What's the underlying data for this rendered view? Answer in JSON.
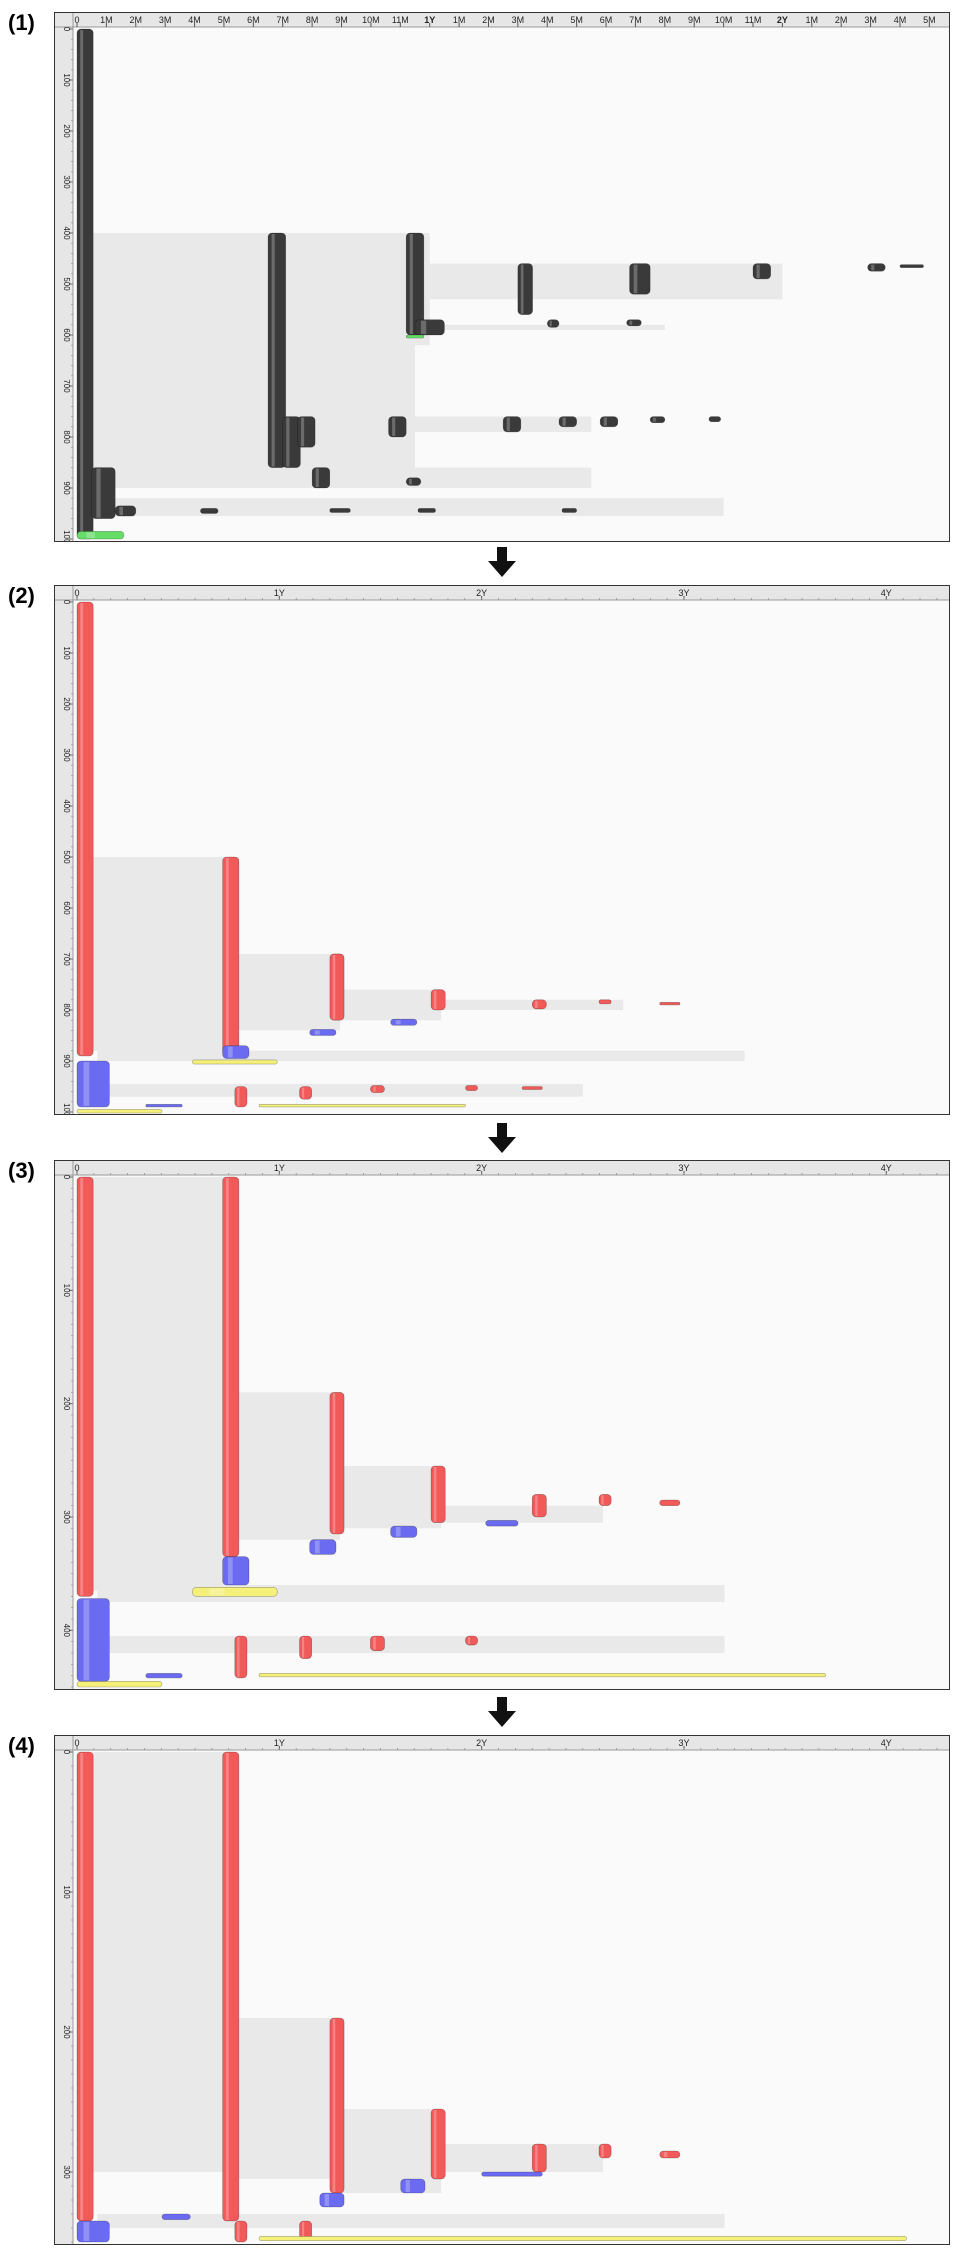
{
  "panels": [
    {
      "label": "(1)"
    },
    {
      "label": "(2)"
    },
    {
      "label": "(3)"
    },
    {
      "label": "(4)"
    }
  ],
  "colors": {
    "frame_bg": "#fafafa",
    "ruler_bg": "#e6e6e6",
    "shade": "#e9e9e9",
    "black_bar": "#3a3a3a",
    "red_bar": "#f25a5a",
    "blue_bar": "#6b6bf2",
    "yellow_bar": "#f5f07a",
    "green_bar": "#66dd66",
    "arrow": "#111111"
  },
  "chart_data": [
    {
      "type": "timeline",
      "panel": "(1)",
      "x_unit": "months",
      "xlim": [
        0,
        29.6
      ],
      "x_ticks": [
        {
          "v": 0,
          "label": "0"
        },
        {
          "v": 1,
          "label": "1M"
        },
        {
          "v": 2,
          "label": "2M"
        },
        {
          "v": 3,
          "label": "3M"
        },
        {
          "v": 4,
          "label": "4M"
        },
        {
          "v": 5,
          "label": "5M"
        },
        {
          "v": 6,
          "label": "6M"
        },
        {
          "v": 7,
          "label": "7M"
        },
        {
          "v": 8,
          "label": "8M"
        },
        {
          "v": 9,
          "label": "9M"
        },
        {
          "v": 10,
          "label": "10M"
        },
        {
          "v": 11,
          "label": "11M"
        },
        {
          "v": 12,
          "label": "1Y",
          "bold": true
        },
        {
          "v": 13,
          "label": "1M"
        },
        {
          "v": 14,
          "label": "2M"
        },
        {
          "v": 15,
          "label": "3M"
        },
        {
          "v": 16,
          "label": "4M"
        },
        {
          "v": 17,
          "label": "5M"
        },
        {
          "v": 18,
          "label": "6M"
        },
        {
          "v": 19,
          "label": "7M"
        },
        {
          "v": 20,
          "label": "8M"
        },
        {
          "v": 21,
          "label": "9M"
        },
        {
          "v": 22,
          "label": "10M"
        },
        {
          "v": 23,
          "label": "11M"
        },
        {
          "v": 24,
          "label": "2Y",
          "bold": true
        },
        {
          "v": 25,
          "label": "1M"
        },
        {
          "v": 26,
          "label": "2M"
        },
        {
          "v": 27,
          "label": "3M"
        },
        {
          "v": 28,
          "label": "4M"
        },
        {
          "v": 29,
          "label": "5M"
        }
      ],
      "ylim": [
        0,
        1000
      ],
      "y_ticks": [
        0,
        100,
        200,
        300,
        400,
        500,
        600,
        700,
        800,
        900,
        1000
      ],
      "shades": [
        {
          "x": 0.5,
          "x2": 11.5,
          "y": 400,
          "y2": 860
        },
        {
          "x": 7.0,
          "x2": 12.0,
          "y": 400,
          "y2": 620
        },
        {
          "x": 12.0,
          "x2": 24.0,
          "y": 460,
          "y2": 530
        },
        {
          "x": 7.0,
          "x2": 17.5,
          "y": 760,
          "y2": 790
        },
        {
          "x": 0.5,
          "x2": 17.5,
          "y": 860,
          "y2": 900
        },
        {
          "x": 0.5,
          "x2": 22.0,
          "y": 920,
          "y2": 955
        },
        {
          "x": 12.0,
          "x2": 20.0,
          "y": 580,
          "y2": 590
        }
      ],
      "bars": [
        {
          "x": 0,
          "x2": 0.55,
          "y": 0,
          "y2": 1000,
          "c": "black_bar"
        },
        {
          "x": 6.5,
          "x2": 7.1,
          "y": 400,
          "y2": 860,
          "c": "black_bar"
        },
        {
          "x": 11.2,
          "x2": 11.8,
          "y": 400,
          "y2": 600,
          "c": "black_bar"
        },
        {
          "x": 15.0,
          "x2": 15.5,
          "y": 460,
          "y2": 560,
          "c": "black_bar"
        },
        {
          "x": 18.8,
          "x2": 19.5,
          "y": 460,
          "y2": 520,
          "c": "black_bar"
        },
        {
          "x": 23.0,
          "x2": 23.6,
          "y": 460,
          "y2": 490,
          "c": "black_bar"
        },
        {
          "x": 26.9,
          "x2": 27.5,
          "y": 460,
          "y2": 475,
          "c": "black_bar"
        },
        {
          "x": 28.0,
          "x2": 28.8,
          "y": 462,
          "y2": 468,
          "c": "black_bar"
        },
        {
          "x": 11.5,
          "x2": 12.5,
          "y": 570,
          "y2": 600,
          "c": "black_bar"
        },
        {
          "x": 16.0,
          "x2": 16.4,
          "y": 570,
          "y2": 585,
          "c": "black_bar"
        },
        {
          "x": 18.7,
          "x2": 19.2,
          "y": 570,
          "y2": 582,
          "c": "black_bar"
        },
        {
          "x": 7.0,
          "x2": 7.6,
          "y": 760,
          "y2": 860,
          "c": "black_bar"
        },
        {
          "x": 7.5,
          "x2": 8.1,
          "y": 760,
          "y2": 820,
          "c": "black_bar"
        },
        {
          "x": 10.6,
          "x2": 11.2,
          "y": 760,
          "y2": 800,
          "c": "black_bar"
        },
        {
          "x": 14.5,
          "x2": 15.1,
          "y": 760,
          "y2": 790,
          "c": "black_bar"
        },
        {
          "x": 16.4,
          "x2": 17.0,
          "y": 760,
          "y2": 780,
          "c": "black_bar"
        },
        {
          "x": 17.8,
          "x2": 18.4,
          "y": 760,
          "y2": 780,
          "c": "black_bar"
        },
        {
          "x": 19.5,
          "x2": 20.0,
          "y": 760,
          "y2": 772,
          "c": "black_bar"
        },
        {
          "x": 21.5,
          "x2": 21.9,
          "y": 760,
          "y2": 770,
          "c": "black_bar"
        },
        {
          "x": 8.0,
          "x2": 8.6,
          "y": 860,
          "y2": 900,
          "c": "black_bar"
        },
        {
          "x": 11.2,
          "x2": 11.7,
          "y": 880,
          "y2": 895,
          "c": "black_bar"
        },
        {
          "x": 0.5,
          "x2": 1.3,
          "y": 860,
          "y2": 960,
          "c": "black_bar"
        },
        {
          "x": 1.3,
          "x2": 2.0,
          "y": 935,
          "y2": 955,
          "c": "black_bar"
        },
        {
          "x": 4.2,
          "x2": 4.8,
          "y": 940,
          "y2": 950,
          "c": "black_bar"
        },
        {
          "x": 8.6,
          "x2": 9.3,
          "y": 940,
          "y2": 948,
          "c": "black_bar"
        },
        {
          "x": 11.6,
          "x2": 12.2,
          "y": 940,
          "y2": 948,
          "c": "black_bar"
        },
        {
          "x": 16.5,
          "x2": 17.0,
          "y": 940,
          "y2": 948,
          "c": "black_bar"
        },
        {
          "x": 0.0,
          "x2": 1.6,
          "y": 985,
          "y2": 1000,
          "c": "green_bar"
        },
        {
          "x": 11.2,
          "x2": 11.8,
          "y": 600,
          "y2": 606,
          "c": "green_bar"
        }
      ]
    },
    {
      "type": "timeline",
      "panel": "(2)",
      "x_unit": "years",
      "xlim": [
        0,
        4.3
      ],
      "x_ticks": [
        {
          "v": 0,
          "label": "0"
        },
        {
          "v": 1,
          "label": "1Y"
        },
        {
          "v": 2,
          "label": "2Y"
        },
        {
          "v": 3,
          "label": "3Y"
        },
        {
          "v": 4,
          "label": "4Y"
        }
      ],
      "ylim": [
        0,
        1000
      ],
      "y_ticks": [
        0,
        100,
        200,
        300,
        400,
        500,
        600,
        700,
        800,
        900,
        1000
      ],
      "shades": [
        {
          "x": 0.07,
          "x2": 0.8,
          "y": 500,
          "y2": 880
        },
        {
          "x": 0.8,
          "x2": 1.3,
          "y": 690,
          "y2": 840
        },
        {
          "x": 1.3,
          "x2": 1.8,
          "y": 760,
          "y2": 820
        },
        {
          "x": 1.8,
          "x2": 2.7,
          "y": 780,
          "y2": 800
        },
        {
          "x": 0.1,
          "x2": 3.3,
          "y": 880,
          "y2": 900
        },
        {
          "x": 0.1,
          "x2": 2.5,
          "y": 945,
          "y2": 970
        }
      ],
      "bars": [
        {
          "x": 0,
          "x2": 0.08,
          "y": 0,
          "y2": 890,
          "c": "red_bar"
        },
        {
          "x": 0.72,
          "x2": 0.8,
          "y": 500,
          "y2": 890,
          "c": "red_bar"
        },
        {
          "x": 1.25,
          "x2": 1.32,
          "y": 690,
          "y2": 820,
          "c": "red_bar"
        },
        {
          "x": 1.75,
          "x2": 1.82,
          "y": 760,
          "y2": 800,
          "c": "red_bar"
        },
        {
          "x": 2.25,
          "x2": 2.32,
          "y": 780,
          "y2": 798,
          "c": "red_bar"
        },
        {
          "x": 2.58,
          "x2": 2.64,
          "y": 780,
          "y2": 788,
          "c": "red_bar"
        },
        {
          "x": 2.88,
          "x2": 2.98,
          "y": 785,
          "y2": 790,
          "c": "red_bar"
        },
        {
          "x": 0.72,
          "x2": 0.85,
          "y": 870,
          "y2": 895,
          "c": "blue_bar"
        },
        {
          "x": 1.15,
          "x2": 1.28,
          "y": 838,
          "y2": 850,
          "c": "blue_bar"
        },
        {
          "x": 1.55,
          "x2": 1.68,
          "y": 818,
          "y2": 830,
          "c": "blue_bar"
        },
        {
          "x": 0.57,
          "x2": 0.99,
          "y": 898,
          "y2": 906,
          "c": "yellow_bar"
        },
        {
          "x": 0,
          "x2": 0.16,
          "y": 900,
          "y2": 990,
          "c": "blue_bar"
        },
        {
          "x": 0.78,
          "x2": 0.84,
          "y": 950,
          "y2": 990,
          "c": "red_bar"
        },
        {
          "x": 1.1,
          "x2": 1.16,
          "y": 950,
          "y2": 975,
          "c": "red_bar"
        },
        {
          "x": 1.45,
          "x2": 1.52,
          "y": 948,
          "y2": 962,
          "c": "red_bar"
        },
        {
          "x": 1.92,
          "x2": 1.98,
          "y": 948,
          "y2": 958,
          "c": "red_bar"
        },
        {
          "x": 2.2,
          "x2": 2.3,
          "y": 950,
          "y2": 956,
          "c": "red_bar"
        },
        {
          "x": 0.34,
          "x2": 0.52,
          "y": 985,
          "y2": 990,
          "c": "blue_bar"
        },
        {
          "x": 0.0,
          "x2": 0.42,
          "y": 995,
          "y2": 1002,
          "c": "yellow_bar"
        },
        {
          "x": 0.9,
          "x2": 1.92,
          "y": 985,
          "y2": 990,
          "c": "yellow_bar"
        }
      ]
    },
    {
      "type": "timeline",
      "panel": "(3)",
      "x_unit": "years",
      "xlim": [
        0,
        4.3
      ],
      "x_ticks": [
        {
          "v": 0,
          "label": "0"
        },
        {
          "v": 1,
          "label": "1Y"
        },
        {
          "v": 2,
          "label": "2Y"
        },
        {
          "v": 3,
          "label": "3Y"
        },
        {
          "v": 4,
          "label": "4Y"
        }
      ],
      "ylim": [
        0,
        450
      ],
      "y_ticks": [
        0,
        100,
        200,
        300,
        400
      ],
      "shades": [
        {
          "x": 0.07,
          "x2": 0.75,
          "y": 0,
          "y2": 365
        },
        {
          "x": 0.8,
          "x2": 1.3,
          "y": 190,
          "y2": 320
        },
        {
          "x": 1.3,
          "x2": 1.8,
          "y": 255,
          "y2": 310
        },
        {
          "x": 1.8,
          "x2": 2.6,
          "y": 290,
          "y2": 305
        },
        {
          "x": 0.1,
          "x2": 3.2,
          "y": 360,
          "y2": 375
        },
        {
          "x": 0.1,
          "x2": 3.2,
          "y": 405,
          "y2": 420
        }
      ],
      "bars": [
        {
          "x": 0,
          "x2": 0.08,
          "y": 0,
          "y2": 370,
          "c": "red_bar"
        },
        {
          "x": 0.72,
          "x2": 0.8,
          "y": 0,
          "y2": 335,
          "c": "red_bar"
        },
        {
          "x": 1.25,
          "x2": 1.32,
          "y": 190,
          "y2": 315,
          "c": "red_bar"
        },
        {
          "x": 1.75,
          "x2": 1.82,
          "y": 255,
          "y2": 305,
          "c": "red_bar"
        },
        {
          "x": 2.25,
          "x2": 2.32,
          "y": 280,
          "y2": 300,
          "c": "red_bar"
        },
        {
          "x": 2.58,
          "x2": 2.64,
          "y": 280,
          "y2": 290,
          "c": "red_bar"
        },
        {
          "x": 2.88,
          "x2": 2.98,
          "y": 285,
          "y2": 290,
          "c": "red_bar"
        },
        {
          "x": 0.72,
          "x2": 0.85,
          "y": 335,
          "y2": 360,
          "c": "blue_bar"
        },
        {
          "x": 1.15,
          "x2": 1.28,
          "y": 320,
          "y2": 333,
          "c": "blue_bar"
        },
        {
          "x": 1.55,
          "x2": 1.68,
          "y": 308,
          "y2": 318,
          "c": "blue_bar"
        },
        {
          "x": 2.02,
          "x2": 2.18,
          "y": 303,
          "y2": 308,
          "c": "blue_bar"
        },
        {
          "x": 0.57,
          "x2": 0.99,
          "y": 362,
          "y2": 370,
          "c": "yellow_bar"
        },
        {
          "x": 0,
          "x2": 0.16,
          "y": 372,
          "y2": 445,
          "c": "blue_bar"
        },
        {
          "x": 0.78,
          "x2": 0.84,
          "y": 405,
          "y2": 442,
          "c": "red_bar"
        },
        {
          "x": 1.1,
          "x2": 1.16,
          "y": 405,
          "y2": 425,
          "c": "red_bar"
        },
        {
          "x": 1.45,
          "x2": 1.52,
          "y": 405,
          "y2": 418,
          "c": "red_bar"
        },
        {
          "x": 1.92,
          "x2": 1.98,
          "y": 405,
          "y2": 413,
          "c": "red_bar"
        },
        {
          "x": 0.34,
          "x2": 0.52,
          "y": 438,
          "y2": 442,
          "c": "blue_bar"
        },
        {
          "x": 0.0,
          "x2": 0.42,
          "y": 445,
          "y2": 450,
          "c": "yellow_bar"
        },
        {
          "x": 0.9,
          "x2": 3.7,
          "y": 438,
          "y2": 441,
          "c": "yellow_bar"
        }
      ]
    },
    {
      "type": "timeline",
      "panel": "(4)",
      "x_unit": "years",
      "xlim": [
        0,
        4.3
      ],
      "x_ticks": [
        {
          "v": 0,
          "label": "0"
        },
        {
          "v": 1,
          "label": "1Y"
        },
        {
          "v": 2,
          "label": "2Y"
        },
        {
          "v": 3,
          "label": "3Y"
        },
        {
          "v": 4,
          "label": "4Y"
        }
      ],
      "ylim": [
        0,
        350
      ],
      "y_ticks": [
        0,
        100,
        200,
        300
      ],
      "shades": [
        {
          "x": 0.07,
          "x2": 0.75,
          "y": 0,
          "y2": 300
        },
        {
          "x": 0.8,
          "x2": 1.3,
          "y": 190,
          "y2": 305
        },
        {
          "x": 1.3,
          "x2": 1.8,
          "y": 255,
          "y2": 315
        },
        {
          "x": 1.8,
          "x2": 2.6,
          "y": 280,
          "y2": 300
        },
        {
          "x": 0.1,
          "x2": 3.2,
          "y": 330,
          "y2": 340
        }
      ],
      "bars": [
        {
          "x": 0,
          "x2": 0.08,
          "y": 0,
          "y2": 335,
          "c": "red_bar"
        },
        {
          "x": 0.72,
          "x2": 0.8,
          "y": 0,
          "y2": 335,
          "c": "red_bar"
        },
        {
          "x": 1.25,
          "x2": 1.32,
          "y": 190,
          "y2": 315,
          "c": "red_bar"
        },
        {
          "x": 1.75,
          "x2": 1.82,
          "y": 255,
          "y2": 305,
          "c": "red_bar"
        },
        {
          "x": 2.25,
          "x2": 2.32,
          "y": 280,
          "y2": 300,
          "c": "red_bar"
        },
        {
          "x": 2.58,
          "x2": 2.64,
          "y": 280,
          "y2": 290,
          "c": "red_bar"
        },
        {
          "x": 2.88,
          "x2": 2.98,
          "y": 285,
          "y2": 290,
          "c": "red_bar"
        },
        {
          "x": 1.6,
          "x2": 1.72,
          "y": 305,
          "y2": 315,
          "c": "blue_bar"
        },
        {
          "x": 1.2,
          "x2": 1.32,
          "y": 315,
          "y2": 325,
          "c": "blue_bar"
        },
        {
          "x": 0.42,
          "x2": 0.56,
          "y": 330,
          "y2": 334,
          "c": "blue_bar"
        },
        {
          "x": 0.0,
          "x2": 0.16,
          "y": 335,
          "y2": 350,
          "c": "blue_bar"
        },
        {
          "x": 0.78,
          "x2": 0.84,
          "y": 335,
          "y2": 350,
          "c": "red_bar"
        },
        {
          "x": 1.1,
          "x2": 1.16,
          "y": 335,
          "y2": 348,
          "c": "red_bar"
        },
        {
          "x": 2.0,
          "x2": 2.3,
          "y": 300,
          "y2": 303,
          "c": "blue_bar"
        },
        {
          "x": 0.9,
          "x2": 4.1,
          "y": 346,
          "y2": 349,
          "c": "yellow_bar"
        }
      ]
    }
  ]
}
